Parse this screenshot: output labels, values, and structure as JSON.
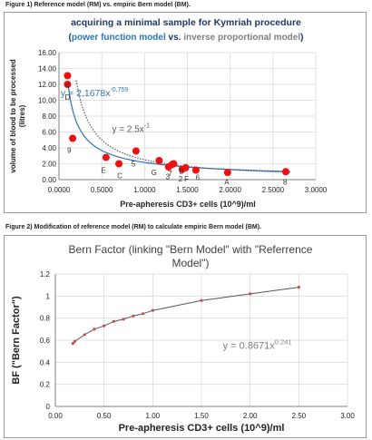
{
  "captions": {
    "fig1": "Figure 1) Reference model (RM) vs. empiric Bern model (BM).",
    "fig2": "Figure 2) Modification of reference model (RM) to calculate empiric Bern model (BM)."
  },
  "chart_data": [
    {
      "type": "scatter",
      "title": "acquiring a minimal sample for Kymriah procedure",
      "subtitle_parts": [
        "(",
        "power function model",
        " vs. ",
        "inverse proportional model",
        ")"
      ],
      "xlabel": "Pre-apheresis CD3+ cells (10^9)/ml",
      "ylabel": "volume of blood to be processed (litres)",
      "xlim": [
        0,
        3
      ],
      "ylim": [
        0,
        16
      ],
      "x_ticks": [
        "0.0000",
        "0.5000",
        "1.0000",
        "1.5000",
        "2.0000",
        "2.5000",
        "3.0000"
      ],
      "y_ticks": [
        "0.00",
        "2.00",
        "4.00",
        "6.00",
        "8.00",
        "10.00",
        "12.00",
        "14.00",
        "16.00"
      ],
      "grid": true,
      "colors": {
        "points": "#ee1111",
        "power_fit": "#2e75b6",
        "inverse_fit": "#595959",
        "subtitle_blue": "#2e75b6",
        "subtitle_gray": "#7f7f7f",
        "title": "#1f3864"
      },
      "points": [
        {
          "x": 0.1,
          "y": 13.1
        },
        {
          "x": 0.1,
          "y": 12.0
        },
        {
          "x": 0.16,
          "y": 5.2
        },
        {
          "x": 0.55,
          "y": 2.8
        },
        {
          "x": 0.7,
          "y": 2.0
        },
        {
          "x": 0.9,
          "y": 3.6
        },
        {
          "x": 1.17,
          "y": 2.4
        },
        {
          "x": 1.28,
          "y": 1.6
        },
        {
          "x": 1.32,
          "y": 1.9
        },
        {
          "x": 1.34,
          "y": 2.0
        },
        {
          "x": 1.44,
          "y": 1.3
        },
        {
          "x": 1.48,
          "y": 1.5
        },
        {
          "x": 1.6,
          "y": 1.2
        },
        {
          "x": 1.97,
          "y": 0.9
        },
        {
          "x": 2.65,
          "y": 1.0
        }
      ],
      "point_labels": [
        {
          "text": "4",
          "x": 0.1,
          "y": 11.9
        },
        {
          "text": "D",
          "x": 0.1,
          "y": 10.4
        },
        {
          "text": "9",
          "x": 0.12,
          "y": 3.7
        },
        {
          "text": "E",
          "x": 0.52,
          "y": 1.2
        },
        {
          "text": "C",
          "x": 0.71,
          "y": 0.5
        },
        {
          "text": "5",
          "x": 0.87,
          "y": 2.0
        },
        {
          "text": "G",
          "x": 1.11,
          "y": 0.9
        },
        {
          "text": "3",
          "x": 1.27,
          "y": 0.4
        },
        {
          "text": "7",
          "x": 1.3,
          "y": 0.8
        },
        {
          "text": "2",
          "x": 1.42,
          "y": 0.1
        },
        {
          "text": "F",
          "x": 1.49,
          "y": 0.1
        },
        {
          "text": "6",
          "x": 1.62,
          "y": 0.3
        },
        {
          "text": "A",
          "x": 1.96,
          "y": -0.3
        },
        {
          "text": "8",
          "x": 2.64,
          "y": -0.3
        },
        {
          "text": "B",
          "x": 1.43,
          "y": 1.1
        }
      ],
      "series": [
        {
          "name": "power function model",
          "coef": 2.1678,
          "exp": -0.759,
          "x_range": [
            0.1,
            2.7
          ]
        },
        {
          "name": "inverse proportional model",
          "coef": 2.5,
          "exp": -1,
          "x_range": [
            0.2,
            2.7
          ]
        }
      ],
      "equations": [
        {
          "text": "y = 2,1678x",
          "sup": "-0,759",
          "x": 0.02,
          "y": 10.5,
          "color": "#2e75b6"
        },
        {
          "text": "y = 2.5x",
          "sup": "-1",
          "x": 0.62,
          "y": 6.0,
          "color": "#595959"
        }
      ]
    },
    {
      "type": "line",
      "title": "Bern Factor (linking \"Bern Model\" with \"Referrence",
      "title_line2": "Model\")",
      "xlabel": "Pre-apheresis CD3+ cells (10^9)/ml",
      "ylabel": "BF (\"Bern Factor\")",
      "xlim": [
        0,
        3
      ],
      "ylim": [
        0,
        1.2
      ],
      "x_ticks": [
        "0.00",
        "0.50",
        "1.00",
        "1.50",
        "2.00",
        "2.50",
        "3.00"
      ],
      "y_ticks": [
        "0",
        "0.2",
        "0.4",
        "0.6",
        "0.8",
        "1",
        "1.2"
      ],
      "grid": true,
      "colors": {
        "line": "#555555",
        "markers": "#c0504d",
        "equation": "#7f7f7f",
        "title": "#3f3f3f"
      },
      "x": [
        0.18,
        0.2,
        0.3,
        0.4,
        0.5,
        0.6,
        0.7,
        0.8,
        0.9,
        1.0,
        1.5,
        2.0,
        2.5
      ],
      "y": [
        0.57,
        0.59,
        0.65,
        0.7,
        0.73,
        0.77,
        0.79,
        0.82,
        0.84,
        0.87,
        0.96,
        1.02,
        1.08
      ],
      "equation": {
        "text": "y = 0.8671x",
        "sup": "0.241",
        "x": 1.72,
        "y": 0.52
      }
    }
  ]
}
